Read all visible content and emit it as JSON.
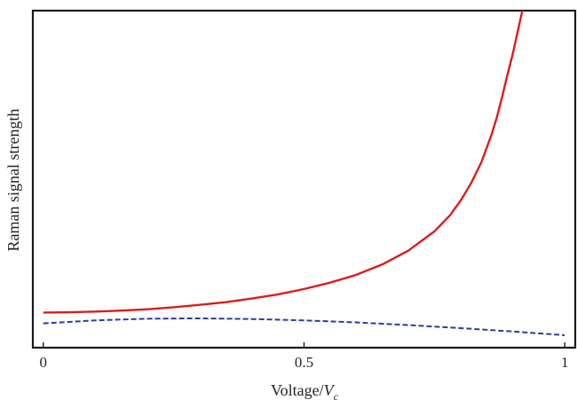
{
  "chart_data": {
    "type": "line",
    "title": "",
    "xlabel_main": "Voltage/",
    "xlabel_var": "V",
    "xlabel_sub": "c",
    "ylabel": "Raman signal strength",
    "xlim": [
      -0.02,
      1.02
    ],
    "ylim": [
      0,
      1
    ],
    "xticks": [
      0,
      0.5,
      1
    ],
    "xtick_labels": [
      "0",
      "0.5",
      "1"
    ],
    "y_ticks_shown": false,
    "grid": false,
    "series": [
      {
        "style": "solid",
        "color": "#dd1c1c",
        "x": [
          0.0,
          0.05,
          0.1,
          0.15,
          0.2,
          0.25,
          0.3,
          0.35,
          0.4,
          0.45,
          0.5,
          0.55,
          0.6,
          0.65,
          0.7,
          0.75,
          0.78,
          0.8,
          0.82,
          0.84,
          0.86,
          0.87,
          0.88,
          0.89,
          0.9,
          0.905,
          0.91,
          0.915,
          0.92,
          0.925
        ],
        "y": [
          0.104,
          0.105,
          0.107,
          0.11,
          0.114,
          0.12,
          0.127,
          0.135,
          0.146,
          0.158,
          0.174,
          0.193,
          0.216,
          0.247,
          0.288,
          0.345,
          0.393,
          0.436,
          0.487,
          0.55,
          0.634,
          0.685,
          0.745,
          0.81,
          0.87,
          0.905,
          0.94,
          0.975,
          1.01,
          1.05
        ]
      },
      {
        "style": "dashed",
        "color": "#2b3d9a",
        "x": [
          0.0,
          0.1,
          0.2,
          0.3,
          0.4,
          0.5,
          0.6,
          0.7,
          0.8,
          0.9,
          1.0
        ],
        "y": [
          0.072,
          0.081,
          0.086,
          0.087,
          0.085,
          0.081,
          0.075,
          0.067,
          0.058,
          0.048,
          0.037
        ]
      }
    ]
  }
}
